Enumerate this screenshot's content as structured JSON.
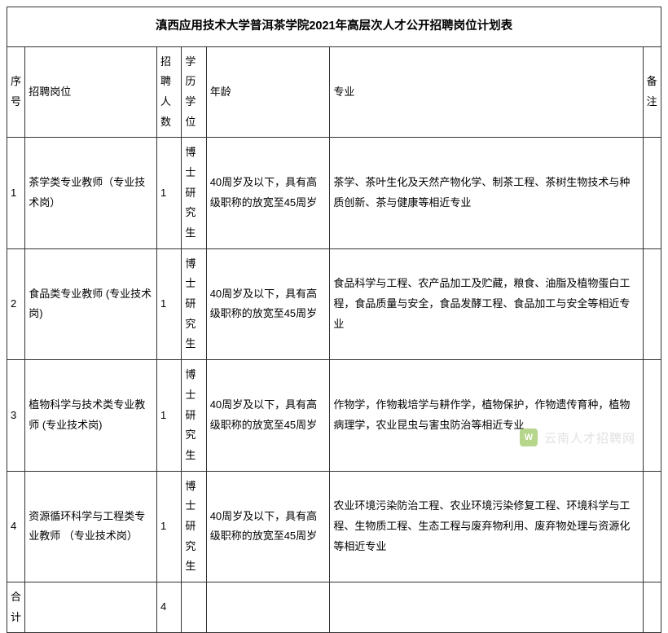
{
  "table": {
    "title": "滇西应用技术大学普洱茶学院2021年高层次人才公开招聘岗位计划表",
    "columns": [
      "序号",
      "招聘岗位",
      "招聘人数",
      "学历学位",
      "年龄",
      "专业",
      "备注"
    ],
    "rows": [
      {
        "seq": "1",
        "position": "茶学类专业教师（专业技术岗）",
        "count": "1",
        "education": "博士研究生",
        "age": "40周岁及以下，具有高级职称的放宽至45周岁",
        "major": "茶学、茶叶生化及天然产物化学、制茶工程、茶树生物技术与种质创新、茶与健康等相近专业",
        "note": ""
      },
      {
        "seq": "2",
        "position": "食品类专业教师 (专业技术岗)",
        "count": "1",
        "education": "博士研究生",
        "age": "40周岁及以下，具有高级职称的放宽至45周岁",
        "major": "食品科学与工程、农产品加工及贮藏，粮食、油脂及植物蛋白工程，食品质量与安全，食品发酵工程、食品加工与安全等相近专业",
        "note": ""
      },
      {
        "seq": "3",
        "position": "植物科学与技术类专业教师 (专业技术岗)",
        "count": "1",
        "education": "博士研究生",
        "age": "40周岁及以下，具有高级职称的放宽至45周岁",
        "major": "作物学，作物栽培学与耕作学，植物保护，作物遗传育种，植物病理学，农业昆虫与害虫防治等相近专业",
        "note": ""
      },
      {
        "seq": "4",
        "position": "资源循环科学与工程类专业教师 （专业技术岗）",
        "count": "1",
        "education": "博士研究生",
        "age": "40周岁及以下，具有高级职称的放宽至45周岁",
        "major": "农业环境污染防治工程、农业环境污染修复工程、环境科学与工程、生物质工程、生态工程与废弃物利用、废弃物处理与资源化等相近专业",
        "note": ""
      }
    ],
    "total_label": "合计",
    "total_count": "4"
  },
  "watermark": {
    "icon_text": "W",
    "text": "云南人才招聘网"
  },
  "style": {
    "border_color": "#333333",
    "background": "#ffffff",
    "font_size_body": 13,
    "font_size_title": 14.5,
    "watermark_color": "#c9c9c9",
    "watermark_icon_bg": "#7ab52e"
  }
}
